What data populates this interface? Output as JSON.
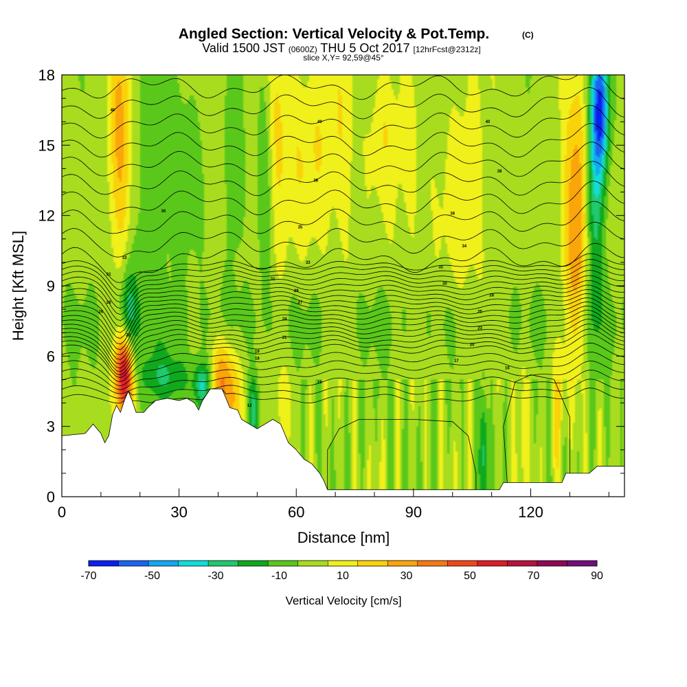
{
  "chart_data": {
    "type": "heatmap",
    "title": "Angled Section: Vertical Velocity & Pot.Temp.",
    "title_suffix": "(C)",
    "subtitle_parts": [
      "Valid 1500 JST",
      "(0600Z)",
      "THU 5 Oct 2017",
      "[12hrFcst@2312z]"
    ],
    "slice_note": "slice X,Y= 92,59@45°",
    "xlabel": "Distance [nm]",
    "ylabel": "Height [Kft MSL]",
    "xlim": [
      0,
      144
    ],
    "ylim": [
      0,
      18
    ],
    "x_ticks": [
      0,
      30,
      60,
      90,
      120
    ],
    "y_ticks": [
      0,
      3,
      6,
      9,
      12,
      15,
      18
    ],
    "colorbar": {
      "label": "Vertical Velocity [cm/s]",
      "ticks": [
        -70,
        -50,
        -30,
        -10,
        10,
        30,
        50,
        70,
        90
      ],
      "levels": [
        -70,
        -60,
        -50,
        -40,
        -30,
        -20,
        -10,
        0,
        10,
        20,
        30,
        40,
        50,
        60,
        70,
        80,
        90
      ],
      "colors": [
        "#0a1ef0",
        "#1a64f0",
        "#12a8f0",
        "#10dcd8",
        "#20c86e",
        "#10a81e",
        "#5ac81a",
        "#a8dc1e",
        "#f0f01a",
        "#fad20a",
        "#faa50a",
        "#f57814",
        "#f0461e",
        "#dc1e28",
        "#b4143c",
        "#8c0a55",
        "#6e1078"
      ]
    },
    "theta_contours": {
      "start": 10,
      "step": 1,
      "count": 34,
      "sampled_labels": [
        {
          "x": 13,
          "y": 16.5,
          "label": "40"
        },
        {
          "x": 66,
          "y": 16.0,
          "label": "40"
        },
        {
          "x": 109,
          "y": 16.0,
          "label": "40"
        },
        {
          "x": 112,
          "y": 13.9,
          "label": "38"
        },
        {
          "x": 65,
          "y": 13.5,
          "label": "38"
        },
        {
          "x": 26,
          "y": 12.2,
          "label": "36"
        },
        {
          "x": 100,
          "y": 12.1,
          "label": "36"
        },
        {
          "x": 61,
          "y": 11.5,
          "label": "35"
        },
        {
          "x": 103,
          "y": 10.7,
          "label": "34"
        },
        {
          "x": 16,
          "y": 10.2,
          "label": "33"
        },
        {
          "x": 63,
          "y": 10.0,
          "label": "33"
        },
        {
          "x": 97,
          "y": 9.8,
          "label": "32"
        },
        {
          "x": 12,
          "y": 9.5,
          "label": "31"
        },
        {
          "x": 54,
          "y": 9.3,
          "label": "31"
        },
        {
          "x": 98,
          "y": 9.1,
          "label": "30"
        },
        {
          "x": 60,
          "y": 8.8,
          "label": "29"
        },
        {
          "x": 110,
          "y": 8.6,
          "label": "28"
        },
        {
          "x": 12,
          "y": 8.3,
          "label": "28"
        },
        {
          "x": 61,
          "y": 8.3,
          "label": "27"
        },
        {
          "x": 10,
          "y": 7.9,
          "label": "26"
        },
        {
          "x": 107,
          "y": 7.9,
          "label": "25"
        },
        {
          "x": 57,
          "y": 7.6,
          "label": "24"
        },
        {
          "x": 107,
          "y": 7.2,
          "label": "23"
        },
        {
          "x": 17,
          "y": 6.9,
          "label": "22"
        },
        {
          "x": 57,
          "y": 6.8,
          "label": "21"
        },
        {
          "x": 105,
          "y": 6.5,
          "label": "20"
        },
        {
          "x": 50,
          "y": 6.2,
          "label": "19"
        },
        {
          "x": 50,
          "y": 5.9,
          "label": "18"
        },
        {
          "x": 101,
          "y": 5.8,
          "label": "17"
        },
        {
          "x": 114,
          "y": 5.5,
          "label": "16"
        },
        {
          "x": 66,
          "y": 4.9,
          "label": "15"
        },
        {
          "x": 48,
          "y": 3.9,
          "label": "12"
        }
      ]
    },
    "w_features": [
      {
        "x": 15,
        "y": 15,
        "sx": 2.2,
        "sy": 3.8,
        "w": 30
      },
      {
        "x": 16,
        "y": 5.3,
        "sx": 1.6,
        "sy": 1.3,
        "w": 75
      },
      {
        "x": 17,
        "y": 7.6,
        "sx": 1.5,
        "sy": 1.6,
        "w": -35
      },
      {
        "x": 23,
        "y": 14,
        "sx": 3.5,
        "sy": 4.5,
        "w": -12
      },
      {
        "x": 31,
        "y": 14,
        "sx": 3,
        "sy": 3,
        "w": -10
      },
      {
        "x": 27,
        "y": 5.1,
        "sx": 5,
        "sy": 0.8,
        "w": -22
      },
      {
        "x": 36,
        "y": 4.7,
        "sx": 1.5,
        "sy": 0.7,
        "w": -35
      },
      {
        "x": 41,
        "y": 5.0,
        "sx": 2,
        "sy": 1.3,
        "w": 35
      },
      {
        "x": 44,
        "y": 4.0,
        "sx": 1.7,
        "sy": 1.4,
        "w": 20
      },
      {
        "x": 49,
        "y": 3.7,
        "sx": 0.9,
        "sy": 1.1,
        "w": -28
      },
      {
        "x": 55,
        "y": 15,
        "sx": 2.5,
        "sy": 4,
        "w": 15
      },
      {
        "x": 52,
        "y": 14,
        "sx": 1.4,
        "sy": 4,
        "w": -15
      },
      {
        "x": 44,
        "y": 14,
        "sx": 1.6,
        "sy": 3,
        "w": -15
      },
      {
        "x": 57,
        "y": 4.0,
        "sx": 1.8,
        "sy": 1.2,
        "w": 10
      },
      {
        "x": 64,
        "y": 15,
        "sx": 5,
        "sy": 3,
        "w": 15
      },
      {
        "x": 72,
        "y": 15,
        "sx": 2.5,
        "sy": 4,
        "w": 10
      },
      {
        "x": 82,
        "y": 16,
        "sx": 2.5,
        "sy": 2,
        "w": 12
      },
      {
        "x": 90,
        "y": 14,
        "sx": 5,
        "sy": 3,
        "w": 10
      },
      {
        "x": 103,
        "y": 13,
        "sx": 5,
        "sy": 4,
        "w": 12
      },
      {
        "x": 96,
        "y": 15,
        "sx": 3,
        "sy": 3,
        "w": -6
      },
      {
        "x": 108,
        "y": 2.0,
        "sx": 0.7,
        "sy": 2.1,
        "w": -30
      },
      {
        "x": 118,
        "y": 3.5,
        "sx": 1,
        "sy": 2.5,
        "w": 15
      },
      {
        "x": 127,
        "y": 3.5,
        "sx": 1,
        "sy": 2.5,
        "w": 15
      },
      {
        "x": 132,
        "y": 12,
        "sx": 2.5,
        "sy": 4,
        "w": 40
      },
      {
        "x": 136,
        "y": 13,
        "sx": 1.7,
        "sy": 4,
        "w": -40
      },
      {
        "x": 138,
        "y": 16.5,
        "sx": 1.5,
        "sy": 2,
        "w": -55
      }
    ]
  }
}
